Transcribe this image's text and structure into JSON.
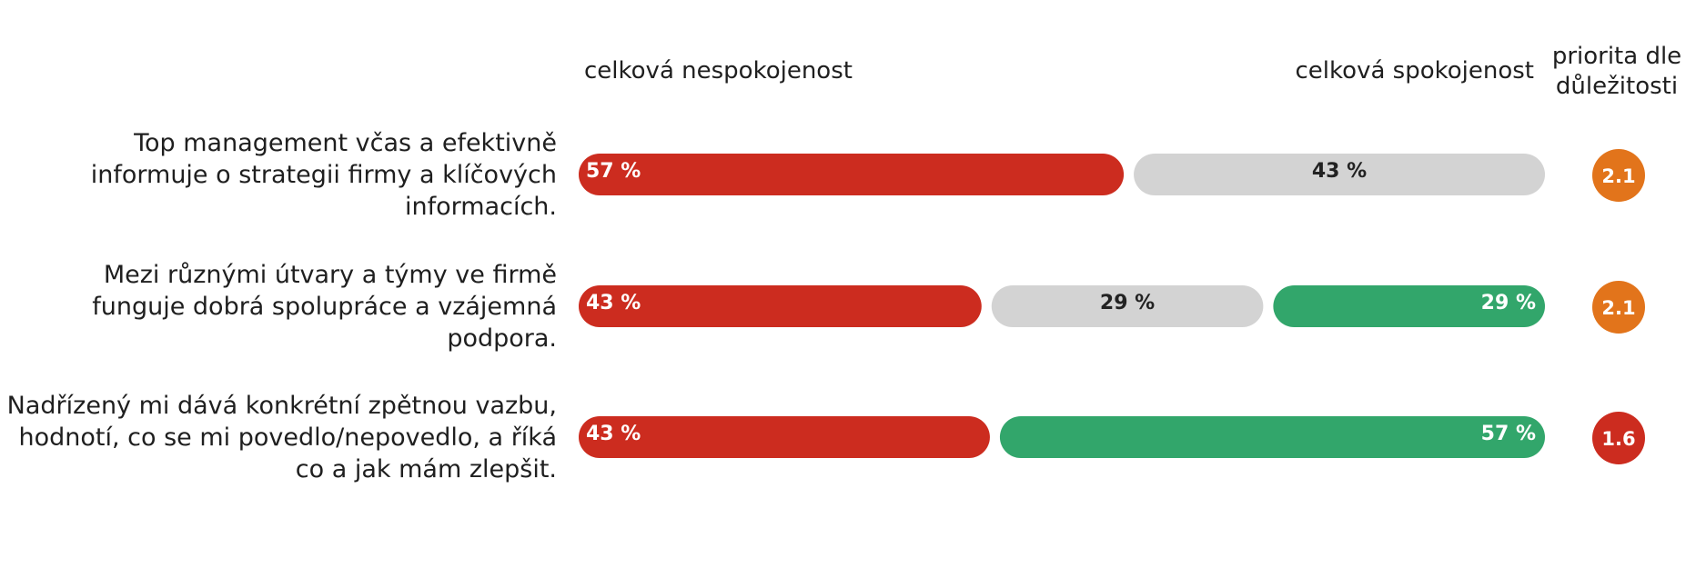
{
  "chart_data": {
    "type": "bar",
    "orientation": "horizontal-stacked",
    "headers": {
      "dissatisfaction": "celková nespokojenost",
      "satisfaction": "celková spokojenost",
      "priority": [
        "priorita dle",
        "důležitosti"
      ]
    },
    "series": [
      {
        "key": "negative",
        "color": "#cc2c1f",
        "text_color": "#ffffff"
      },
      {
        "key": "neutral",
        "color": "#d3d3d3",
        "text_color": "#222222"
      },
      {
        "key": "positive",
        "color": "#32a66b",
        "text_color": "#ffffff"
      }
    ],
    "rows": [
      {
        "question_lines": [
          "Top management včas a efektivně",
          "informuje o strategii firmy a klíčových",
          "informacích."
        ],
        "values": {
          "negative": 57,
          "neutral": 43,
          "positive": 0
        },
        "labels": {
          "negative": "57 %",
          "neutral": "43 %",
          "positive": ""
        },
        "priority": "2.1",
        "priority_color": "#e2741b"
      },
      {
        "question_lines": [
          "Mezi různými útvary a týmy ve firmě",
          "funguje dobrá spolupráce a vzájemná",
          "podpora."
        ],
        "values": {
          "negative": 43,
          "neutral": 29,
          "positive": 29
        },
        "labels": {
          "negative": "43 %",
          "neutral": "29 %",
          "positive": "29 %"
        },
        "priority": "2.1",
        "priority_color": "#e2741b"
      },
      {
        "question_lines": [
          "Nadřízený mi dává konkrétní zpětnou vazbu,",
          "hodnotí, co se mi povedlo/nepovedlo, a říká",
          "co a jak mám zlepšit."
        ],
        "values": {
          "negative": 43,
          "neutral": 0,
          "positive": 57
        },
        "labels": {
          "negative": "43 %",
          "neutral": "",
          "positive": "57 %"
        },
        "priority": "1.6",
        "priority_color": "#cc2c1f"
      }
    ]
  }
}
